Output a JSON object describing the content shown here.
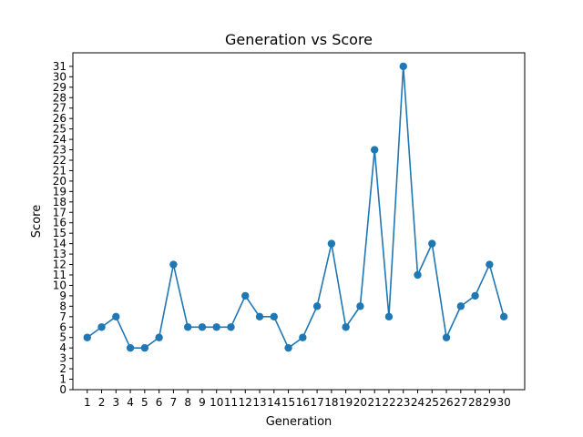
{
  "chart_data": {
    "type": "line",
    "title": "Generation vs Score",
    "xlabel": "Generation",
    "ylabel": "Score",
    "x": [
      1,
      2,
      3,
      4,
      5,
      6,
      7,
      8,
      9,
      10,
      11,
      12,
      13,
      14,
      15,
      16,
      17,
      18,
      19,
      20,
      21,
      22,
      23,
      24,
      25,
      26,
      27,
      28,
      29,
      30
    ],
    "values": [
      5,
      6,
      7,
      4,
      4,
      5,
      12,
      6,
      6,
      6,
      6,
      9,
      7,
      7,
      4,
      5,
      8,
      14,
      6,
      8,
      23,
      7,
      31,
      11,
      14,
      5,
      8,
      9,
      12,
      7
    ],
    "xlim": [
      0,
      31.45
    ],
    "ylim": [
      0,
      32.3
    ],
    "yticks": [
      0,
      1,
      2,
      3,
      4,
      5,
      6,
      7,
      8,
      9,
      10,
      11,
      12,
      13,
      14,
      15,
      16,
      17,
      18,
      19,
      20,
      21,
      22,
      23,
      24,
      25,
      26,
      27,
      28,
      29,
      30,
      31
    ],
    "grid": false,
    "color": "#1f77b4",
    "marker": "circle"
  }
}
